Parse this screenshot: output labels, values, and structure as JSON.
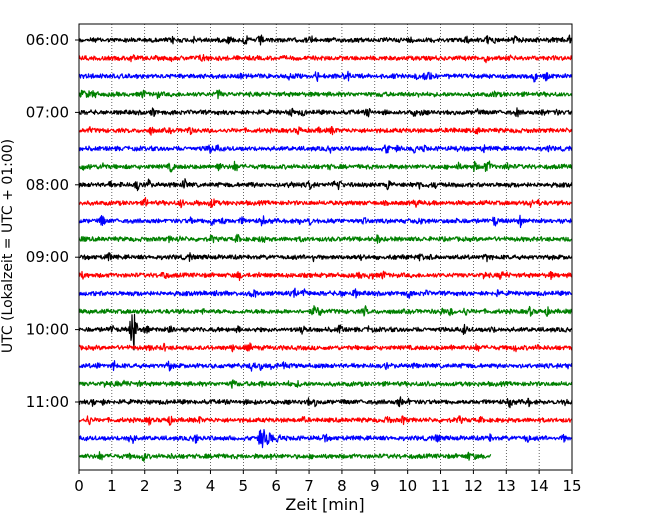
{
  "chart_data": {
    "type": "line",
    "xlabel": "Zeit  [min]",
    "ylabel": "UTC (Lokalzeit = UTC + 01:00)",
    "xlim": [
      0,
      15
    ],
    "x_ticks": [
      "0",
      "1",
      "2",
      "3",
      "4",
      "5",
      "6",
      "7",
      "8",
      "9",
      "10",
      "11",
      "12",
      "13",
      "14",
      "15"
    ],
    "y_ticks": [
      "06:00",
      "07:00",
      "08:00",
      "09:00",
      "10:00",
      "11:00"
    ],
    "grid": "vertical dotted",
    "trace_interval_min": 15,
    "traces": [
      {
        "start": "06:00",
        "color": "#000000",
        "end_min": 15
      },
      {
        "start": "06:15",
        "color": "#ff0000",
        "end_min": 15
      },
      {
        "start": "06:30",
        "color": "#0000ff",
        "end_min": 15
      },
      {
        "start": "06:45",
        "color": "#008000",
        "end_min": 15
      },
      {
        "start": "07:00",
        "color": "#000000",
        "end_min": 15
      },
      {
        "start": "07:15",
        "color": "#ff0000",
        "end_min": 15
      },
      {
        "start": "07:30",
        "color": "#0000ff",
        "end_min": 15
      },
      {
        "start": "07:45",
        "color": "#008000",
        "end_min": 15
      },
      {
        "start": "08:00",
        "color": "#000000",
        "end_min": 15
      },
      {
        "start": "08:15",
        "color": "#ff0000",
        "end_min": 15
      },
      {
        "start": "08:30",
        "color": "#0000ff",
        "end_min": 15
      },
      {
        "start": "08:45",
        "color": "#008000",
        "end_min": 15
      },
      {
        "start": "09:00",
        "color": "#000000",
        "end_min": 15
      },
      {
        "start": "09:15",
        "color": "#ff0000",
        "end_min": 15
      },
      {
        "start": "09:30",
        "color": "#0000ff",
        "end_min": 15
      },
      {
        "start": "09:45",
        "color": "#008000",
        "end_min": 15
      },
      {
        "start": "10:00",
        "color": "#000000",
        "end_min": 15
      },
      {
        "start": "10:15",
        "color": "#ff0000",
        "end_min": 15
      },
      {
        "start": "10:30",
        "color": "#0000ff",
        "end_min": 15
      },
      {
        "start": "10:45",
        "color": "#008000",
        "end_min": 15
      },
      {
        "start": "11:00",
        "color": "#000000",
        "end_min": 15
      },
      {
        "start": "11:15",
        "color": "#ff0000",
        "end_min": 15
      },
      {
        "start": "11:30",
        "color": "#0000ff",
        "end_min": 15
      },
      {
        "start": "11:45",
        "color": "#008000",
        "end_min": 12.55
      }
    ],
    "events": [
      {
        "trace": "10:00",
        "at_min": 1.65,
        "amplitude": "large"
      },
      {
        "trace": "11:30",
        "at_min": 5.6,
        "amplitude": "medium"
      }
    ]
  }
}
